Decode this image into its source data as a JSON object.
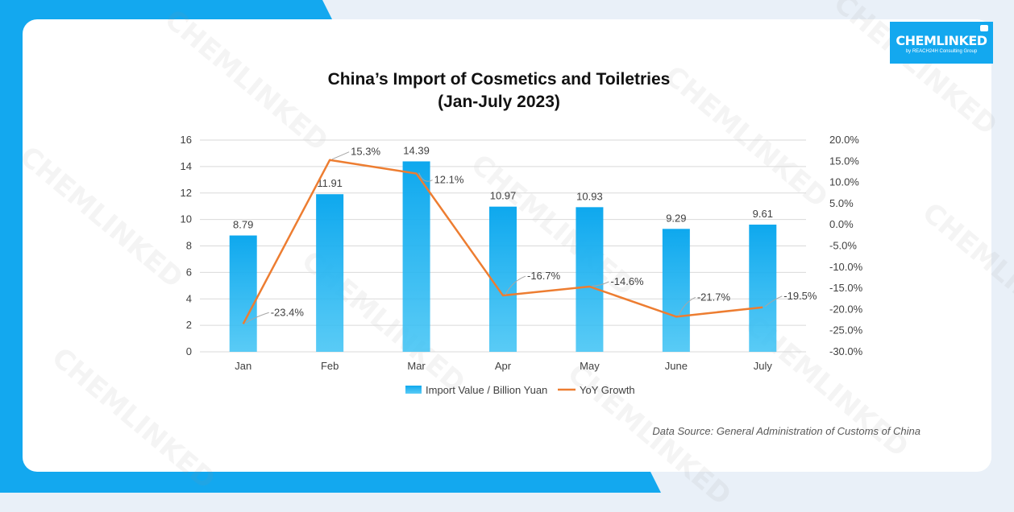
{
  "brand": {
    "name": "CHEMLINKED",
    "tagline": "by REACH24H Consulting Group"
  },
  "title_line1": "China’s Import of Cosmetics and Toiletries",
  "title_line2": "(Jan-July 2023)",
  "source": "Data Source: General Administration of Customs of China",
  "colors": {
    "bar": "#3cc2f4",
    "line": "#ed7d31",
    "accent": "#13a8ef"
  },
  "chart_data": {
    "type": "bar",
    "categories": [
      "Jan",
      "Feb",
      "Mar",
      "Apr",
      "May",
      "June",
      "July"
    ],
    "series": [
      {
        "name": "Import Value / Billion Yuan",
        "type": "bar",
        "axis": "left",
        "values": [
          8.79,
          11.91,
          14.39,
          10.97,
          10.93,
          9.29,
          9.61
        ],
        "labels": [
          "8.79",
          "11.91",
          "14.39",
          "10.97",
          "10.93",
          "9.29",
          "9.61"
        ]
      },
      {
        "name": "YoY Growth",
        "type": "line",
        "axis": "right",
        "values": [
          -23.4,
          15.3,
          12.1,
          -16.7,
          -14.6,
          -21.7,
          -19.5
        ],
        "labels": [
          "-23.4%",
          "15.3%",
          "12.1%",
          "-16.7%",
          "-14.6%",
          "-21.7%",
          "-19.5%"
        ]
      }
    ],
    "ylim_left": [
      0,
      16
    ],
    "yticks_left": [
      "0",
      "2",
      "4",
      "6",
      "8",
      "10",
      "12",
      "14",
      "16"
    ],
    "ylim_right": [
      -30,
      20
    ],
    "yticks_right": [
      "-30.0%",
      "-25.0%",
      "-20.0%",
      "-15.0%",
      "-10.0%",
      "-5.0%",
      "0.0%",
      "5.0%",
      "10.0%",
      "15.0%",
      "20.0%"
    ],
    "grid": true,
    "legend": "bottom"
  }
}
